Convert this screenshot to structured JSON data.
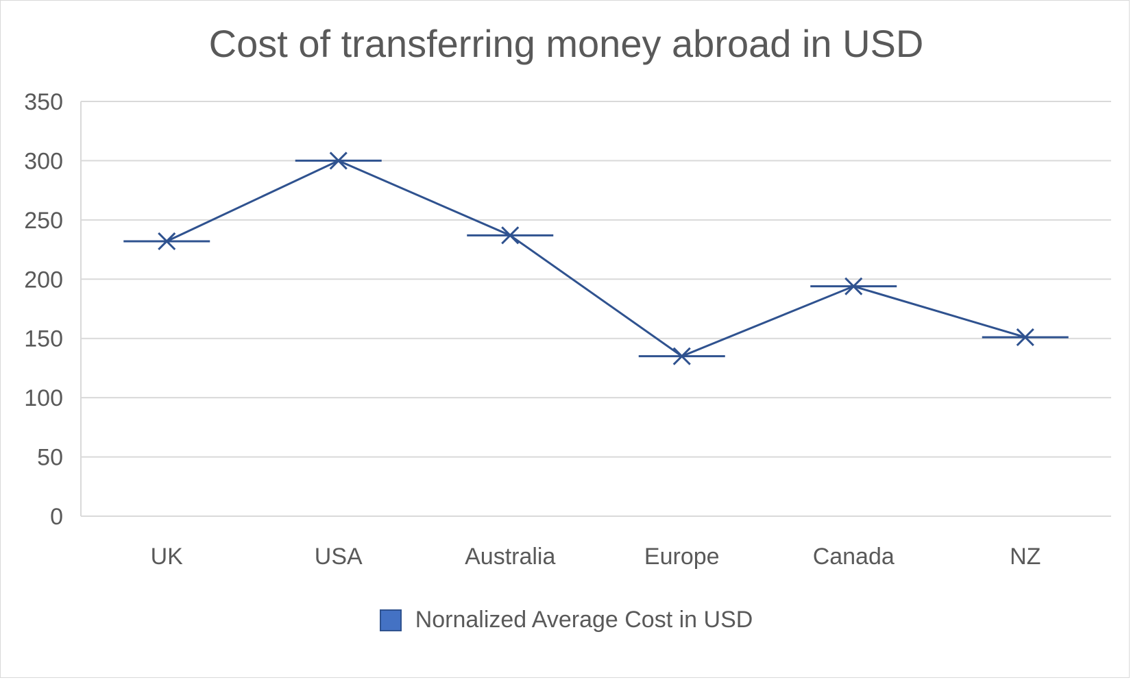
{
  "chart_data": {
    "type": "line",
    "title": "Cost of transferring money abroad in USD",
    "xlabel": "",
    "ylabel": "",
    "categories": [
      "UK",
      "USA",
      "Australia",
      "Europe",
      "Canada",
      "NZ"
    ],
    "series": [
      {
        "name": "Nornalized Average Cost in USD",
        "values": [
          232,
          300,
          237,
          135,
          194,
          151
        ],
        "color": "#2f528f",
        "marker": "x-with-dash",
        "legend_color": "#4472c4"
      }
    ],
    "ylim": [
      0,
      350
    ],
    "yticks": [
      0,
      50,
      100,
      150,
      200,
      250,
      300,
      350
    ],
    "grid": "horizontal",
    "legend_position": "bottom",
    "colors": {
      "text": "#595959",
      "grid": "#d9d9d9"
    }
  }
}
